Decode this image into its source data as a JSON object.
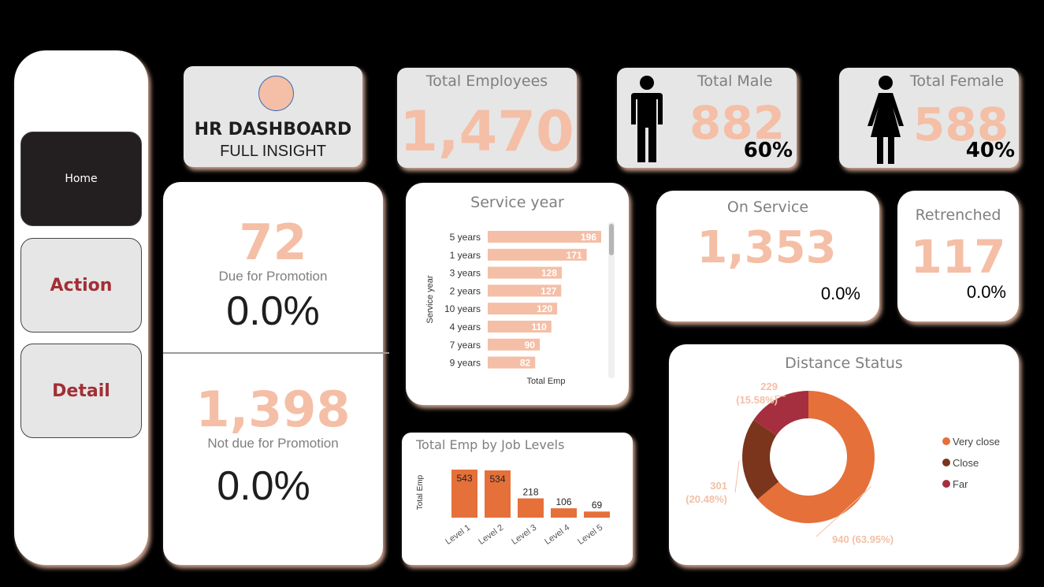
{
  "sidebar": {
    "items": [
      {
        "label": "Home"
      },
      {
        "label": "Action"
      },
      {
        "label": "Detail"
      }
    ]
  },
  "header": {
    "title": "HR DASHBOARD",
    "subtitle": "FULL INSIGHT"
  },
  "kpis": {
    "total_employees": {
      "label": "Total Employees",
      "value": "1,470"
    },
    "total_male": {
      "label": "Total Male",
      "value": "882",
      "pct": "60%",
      "icon": "male-person-icon"
    },
    "total_female": {
      "label": "Total Female",
      "value": "588",
      "pct": "40%",
      "icon": "female-person-icon"
    },
    "on_service": {
      "label": "On Service",
      "value": "1,353",
      "pct": "0.0%"
    },
    "retrenched": {
      "label": "Retrenched",
      "value": "117",
      "pct": "0.0%"
    }
  },
  "promotion": {
    "due": {
      "value": "72",
      "label": "Due for Promotion",
      "pct": "0.0%"
    },
    "not_due": {
      "value": "1,398",
      "label": "Not due for Promotion",
      "pct": "0.0%"
    }
  },
  "colors": {
    "accent_peach": "#f4bfa6",
    "bar_orange": "#e5703a",
    "very_close": "#e5703a",
    "close": "#7a351c",
    "far": "#a52f3f",
    "nav_text": "#a12f35"
  },
  "chart_data": [
    {
      "type": "bar",
      "orientation": "horizontal",
      "title": "Service year",
      "xlabel": "Total Emp",
      "ylabel": "Service year",
      "categories": [
        "5 years",
        "1 years",
        "3 years",
        "2 years",
        "10 years",
        "4 years",
        "7 years",
        "9 years"
      ],
      "values": [
        196,
        171,
        128,
        127,
        120,
        110,
        90,
        82
      ],
      "xlim": [
        0,
        196
      ]
    },
    {
      "type": "bar",
      "title": "Total Emp by Job Levels",
      "xlabel": "",
      "ylabel": "Total Emp",
      "categories": [
        "Level 1",
        "Level 2",
        "Level 3",
        "Level 4",
        "Level 5"
      ],
      "values": [
        543,
        534,
        218,
        106,
        69
      ],
      "ylim": [
        0,
        543
      ]
    },
    {
      "type": "pie",
      "title": "Distance Status",
      "legend_position": "right",
      "categories": [
        "Very close",
        "Close",
        "Far"
      ],
      "values": [
        940,
        301,
        229
      ],
      "labels": [
        "940 (63.95%)",
        "301 (20.48%)",
        "229 (15.58%)"
      ],
      "label_lines": [
        [
          "940 (63.95%)"
        ],
        [
          "301",
          "(20.48%)"
        ],
        [
          "229",
          "(15.58%)"
        ]
      ]
    }
  ]
}
